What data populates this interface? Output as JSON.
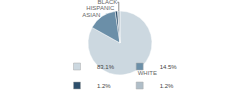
{
  "chart_data": {
    "type": "pie",
    "categories": [
      "WHITE",
      "ASIAN",
      "HISPANIC",
      "BLACK"
    ],
    "values": [
      83.1,
      14.5,
      1.2,
      1.2
    ],
    "value_labels": [
      "83.1%",
      "14.5%",
      "1.2%",
      "1.2%"
    ],
    "colors": [
      "#ccd8e0",
      "#6b8fa8",
      "#2d4f6b",
      "#b0bec8"
    ],
    "legend": "bottom"
  }
}
